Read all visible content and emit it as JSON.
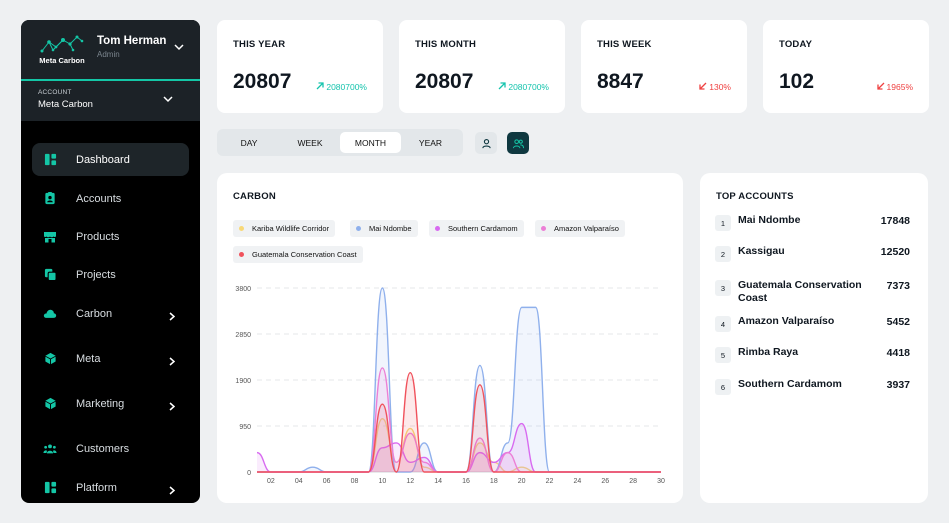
{
  "sidebar": {
    "logo_text": "Meta Carbon",
    "user_name": "Tom Herman",
    "user_role": "Admin",
    "account_label": "ACCOUNT",
    "account_value": "Meta Carbon",
    "items": [
      {
        "label": "Dashboard",
        "icon": "dashboard-icon",
        "active": true,
        "arrow": false
      },
      {
        "label": "Accounts",
        "icon": "id-badge-icon",
        "active": false,
        "arrow": false
      },
      {
        "label": "Products",
        "icon": "store-icon",
        "active": false,
        "arrow": false
      },
      {
        "label": "Projects",
        "icon": "copy-icon",
        "active": false,
        "arrow": false
      },
      {
        "label": "Carbon",
        "icon": "cloud-icon",
        "active": false,
        "arrow": true
      },
      {
        "label": "Meta",
        "icon": "cube-icon",
        "active": false,
        "arrow": true
      },
      {
        "label": "Marketing",
        "icon": "cube-icon",
        "active": false,
        "arrow": true
      },
      {
        "label": "Customers",
        "icon": "users-icon",
        "active": false,
        "arrow": false
      },
      {
        "label": "Platform",
        "icon": "dashboard-icon",
        "active": false,
        "arrow": true
      }
    ],
    "accent_color": "#14c6a6"
  },
  "stats": [
    {
      "label": "THIS YEAR",
      "value": "20807",
      "change": "2080700%",
      "direction": "up"
    },
    {
      "label": "THIS MONTH",
      "value": "20807",
      "change": "2080700%",
      "direction": "up"
    },
    {
      "label": "THIS WEEK",
      "value": "8847",
      "change": "130%",
      "direction": "down"
    },
    {
      "label": "TODAY",
      "value": "102",
      "change": "1965%",
      "direction": "down"
    }
  ],
  "tabs": [
    "DAY",
    "WEEK",
    "MONTH",
    "YEAR"
  ],
  "active_tab": "MONTH",
  "view_toggles": [
    {
      "icon": "user-icon",
      "active": false
    },
    {
      "icon": "users-icon",
      "active": true
    }
  ],
  "carbon_chart": {
    "title": "CARBON",
    "legend": [
      {
        "name": "Kariba Wildlife Corridor",
        "color": "#f8d877"
      },
      {
        "name": "Mai Ndombe",
        "color": "#8fb0ec"
      },
      {
        "name": "Southern Cardamom",
        "color": "#d86af0"
      },
      {
        "name": "Amazon Valparaíso",
        "color": "#ec7fd6"
      },
      {
        "name": "Guatemala Conservation Coast",
        "color": "#f0525c"
      }
    ]
  },
  "chart_data": {
    "type": "area",
    "title": "CARBON",
    "xlabel": "",
    "ylabel": "",
    "x": [
      1,
      2,
      3,
      4,
      5,
      6,
      7,
      8,
      9,
      10,
      11,
      12,
      13,
      14,
      15,
      16,
      17,
      18,
      19,
      20,
      21,
      22,
      23,
      24,
      25,
      26,
      27,
      28,
      29,
      30
    ],
    "x_ticks": [
      "02",
      "04",
      "06",
      "08",
      "10",
      "12",
      "14",
      "16",
      "18",
      "20",
      "22",
      "24",
      "26",
      "28",
      "30"
    ],
    "y_ticks": [
      0,
      950,
      1900,
      2850,
      3800
    ],
    "ylim": [
      0,
      3800
    ],
    "grid": true,
    "legend_position": "top",
    "series": [
      {
        "name": "Kariba Wildlife Corridor",
        "color": "#f8d877",
        "values": [
          0,
          0,
          0,
          0,
          0,
          0,
          0,
          0,
          0,
          1100,
          200,
          900,
          100,
          0,
          0,
          0,
          600,
          200,
          0,
          100,
          0,
          0,
          0,
          0,
          0,
          0,
          0,
          0,
          0,
          0
        ]
      },
      {
        "name": "Mai Ndombe",
        "color": "#8fb0ec",
        "values": [
          0,
          0,
          0,
          0,
          100,
          0,
          0,
          0,
          0,
          3800,
          0,
          0,
          600,
          0,
          0,
          0,
          2200,
          0,
          600,
          3400,
          3400,
          0,
          0,
          0,
          0,
          0,
          0,
          0,
          0,
          0
        ]
      },
      {
        "name": "Southern Cardamom",
        "color": "#d86af0",
        "values": [
          400,
          0,
          0,
          0,
          0,
          0,
          0,
          0,
          0,
          500,
          600,
          200,
          300,
          0,
          0,
          0,
          400,
          200,
          400,
          1000,
          0,
          0,
          0,
          0,
          0,
          0,
          0,
          0,
          0,
          0
        ]
      },
      {
        "name": "Amazon Valparaíso",
        "color": "#ec7fd6",
        "values": [
          0,
          0,
          0,
          0,
          0,
          0,
          0,
          0,
          0,
          2150,
          200,
          800,
          200,
          0,
          0,
          0,
          700,
          0,
          400,
          0,
          0,
          0,
          0,
          0,
          0,
          0,
          0,
          0,
          0,
          0
        ]
      },
      {
        "name": "Guatemala Conservation Coast",
        "color": "#f0525c",
        "values": [
          0,
          0,
          0,
          0,
          0,
          0,
          0,
          0,
          0,
          1400,
          0,
          2050,
          0,
          0,
          0,
          0,
          1800,
          0,
          0,
          0,
          0,
          0,
          0,
          0,
          0,
          0,
          0,
          0,
          0,
          0
        ]
      }
    ]
  },
  "top_accounts": {
    "title": "TOP ACCOUNTS",
    "rows": [
      {
        "rank": "1",
        "name": "Mai Ndombe",
        "value": "17848"
      },
      {
        "rank": "2",
        "name": "Kassigau",
        "value": "12520"
      },
      {
        "rank": "3",
        "name": "Guatemala Conservation Coast",
        "value": "7373"
      },
      {
        "rank": "4",
        "name": "Amazon Valparaíso",
        "value": "5452"
      },
      {
        "rank": "5",
        "name": "Rimba Raya",
        "value": "4418"
      },
      {
        "rank": "6",
        "name": "Southern Cardamom",
        "value": "3937"
      }
    ]
  }
}
